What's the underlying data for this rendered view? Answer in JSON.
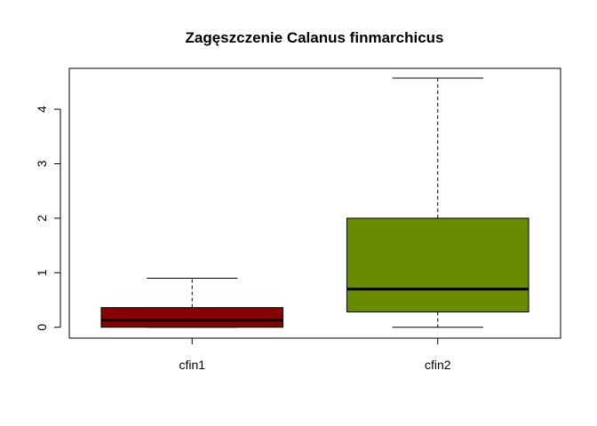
{
  "chart_data": {
    "type": "boxplot",
    "title": "Zagęszczenie Calanus finmarchicus",
    "xlabel": "",
    "ylabel": "",
    "ylim": [
      -0.2,
      4.75
    ],
    "yticks": [
      0,
      1,
      2,
      3,
      4
    ],
    "ytick_labels": [
      "0",
      "1",
      "2",
      "3",
      "4"
    ],
    "grid": false,
    "legend": "none",
    "categories": [
      "cfin1",
      "cfin2"
    ],
    "boxes": [
      {
        "label": "cfin1",
        "whisker_low": 0.0,
        "q1": 0.0,
        "median": 0.13,
        "q3": 0.36,
        "whisker_high": 0.9,
        "color": "#8b0000"
      },
      {
        "label": "cfin2",
        "whisker_low": 0.0,
        "q1": 0.28,
        "median": 0.7,
        "q3": 2.0,
        "whisker_high": 4.57,
        "color": "#698b00"
      }
    ]
  }
}
